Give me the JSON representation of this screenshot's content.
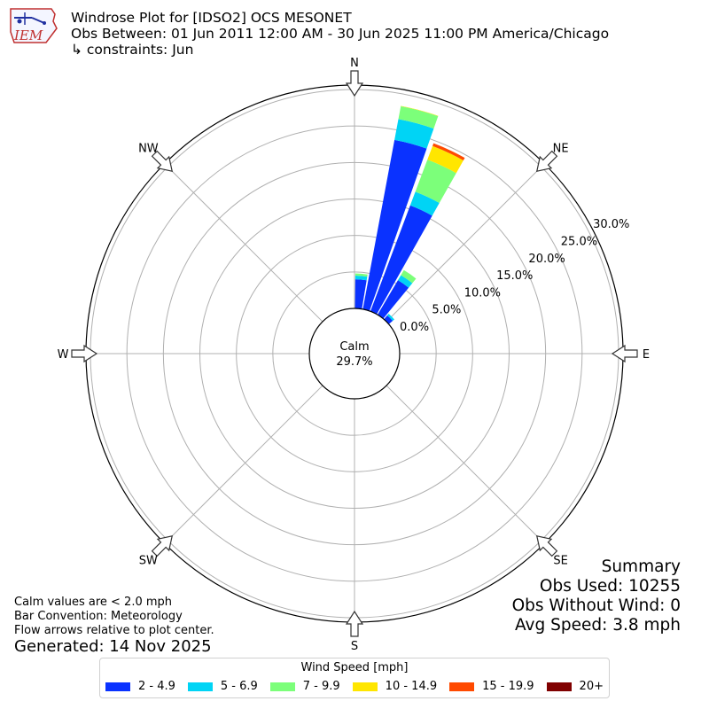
{
  "logo": {
    "text": "IEM"
  },
  "header": {
    "title": "Windrose Plot for [IDSO2] OCS MESONET",
    "period": "Obs Between: 01 Jun 2011 12:00 AM - 30 Jun 2025 11:00 PM America/Chicago",
    "constraints": "↳ constraints: Jun"
  },
  "directions": [
    "N",
    "NE",
    "E",
    "SE",
    "S",
    "SW",
    "W",
    "NW"
  ],
  "calm": {
    "label": "Calm",
    "value": "29.7%"
  },
  "summary": {
    "title": "Summary",
    "obs_used": "Obs Used: 10255",
    "obs_without_wind": "Obs Without Wind: 0",
    "avg_speed": "Avg Speed: 3.8 mph"
  },
  "notes": {
    "calm_note": "Calm values are < 2.0 mph",
    "bar_convention": "Bar Convention: Meteorology",
    "flow_arrows": "Flow arrows relative to plot center.",
    "generated": "Generated: 14 Nov 2025"
  },
  "chart_data": {
    "type": "windrose",
    "title": "Windrose Plot for [IDSO2] OCS MESONET",
    "legend_title": "Wind Speed [mph]",
    "legend_placement": "bottom",
    "radial_unit": "%",
    "radial_ticks": [
      "0.0%",
      "5.0%",
      "10.0%",
      "15.0%",
      "20.0%",
      "25.0%",
      "30.0%"
    ],
    "rlim": [
      0,
      30
    ],
    "calm_percent": 29.7,
    "grid": true,
    "speed_bins": [
      {
        "label": "2 - 4.9",
        "color": "#0a32ff"
      },
      {
        "label": "5 - 6.9",
        "color": "#00d4f5"
      },
      {
        "label": "7 - 9.9",
        "color": "#7cff7a"
      },
      {
        "label": "10 - 14.9",
        "color": "#ffe600"
      },
      {
        "label": "15 - 19.9",
        "color": "#ff4a00"
      },
      {
        "label": "20+",
        "color": "#800000"
      }
    ],
    "sectors": [
      {
        "direction_deg": 5,
        "values": [
          4.0,
          0.5,
          0.3,
          0,
          0,
          0
        ]
      },
      {
        "direction_deg": 15,
        "values": [
          23.6,
          2.9,
          1.8,
          0.05,
          0,
          0
        ]
      },
      {
        "direction_deg": 25,
        "values": [
          15.5,
          2.0,
          4.7,
          2.0,
          0.4,
          0
        ]
      },
      {
        "direction_deg": 35,
        "values": [
          5.5,
          0.8,
          0.8,
          0,
          0,
          0
        ]
      },
      {
        "direction_deg": 45,
        "values": [
          0.7,
          0.3,
          0,
          0,
          0,
          0
        ]
      }
    ]
  }
}
